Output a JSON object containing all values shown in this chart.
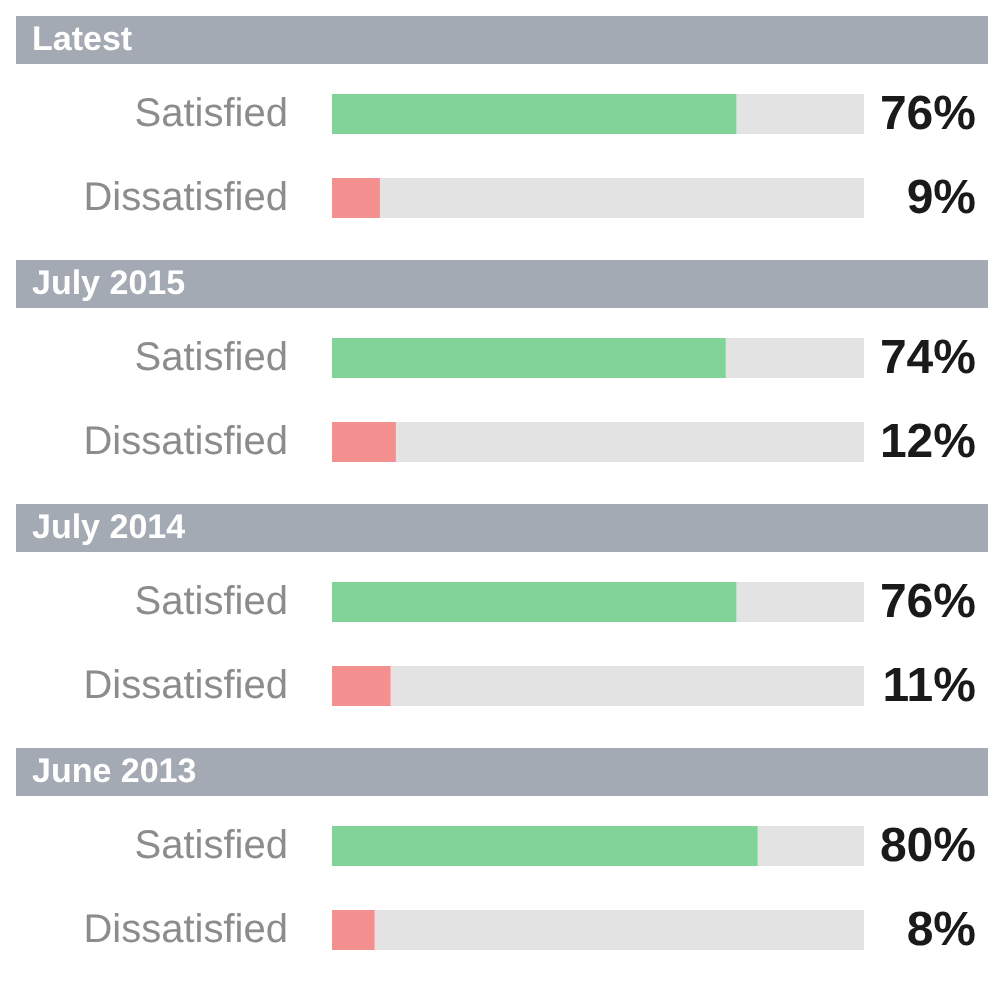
{
  "chart_data": [
    {
      "type": "bar",
      "orientation": "horizontal",
      "title": "Latest",
      "categories": [
        "Satisfied",
        "Dissatisfied"
      ],
      "values": [
        76,
        9
      ],
      "colors": [
        "#82d39a",
        "#f49090"
      ],
      "value_labels": [
        "76%",
        "9%"
      ],
      "xlim": [
        0,
        100
      ],
      "tick_labels": "y"
    },
    {
      "type": "bar",
      "orientation": "horizontal",
      "title": "July 2015",
      "categories": [
        "Satisfied",
        "Dissatisfied"
      ],
      "values": [
        74,
        12
      ],
      "colors": [
        "#82d39a",
        "#f49090"
      ],
      "value_labels": [
        "74%",
        "12%"
      ],
      "xlim": [
        0,
        100
      ],
      "tick_labels": "y"
    },
    {
      "type": "bar",
      "orientation": "horizontal",
      "title": "July 2014",
      "categories": [
        "Satisfied",
        "Dissatisfied"
      ],
      "values": [
        76,
        11
      ],
      "colors": [
        "#82d39a",
        "#f49090"
      ],
      "value_labels": [
        "76%",
        "11%"
      ],
      "xlim": [
        0,
        100
      ],
      "tick_labels": "y"
    },
    {
      "type": "bar",
      "orientation": "horizontal",
      "title": "June 2013",
      "categories": [
        "Satisfied",
        "Dissatisfied"
      ],
      "values": [
        80,
        8
      ],
      "colors": [
        "#82d39a",
        "#f49090"
      ],
      "value_labels": [
        "80%",
        "8%"
      ],
      "xlim": [
        0,
        100
      ],
      "tick_labels": "y"
    }
  ]
}
